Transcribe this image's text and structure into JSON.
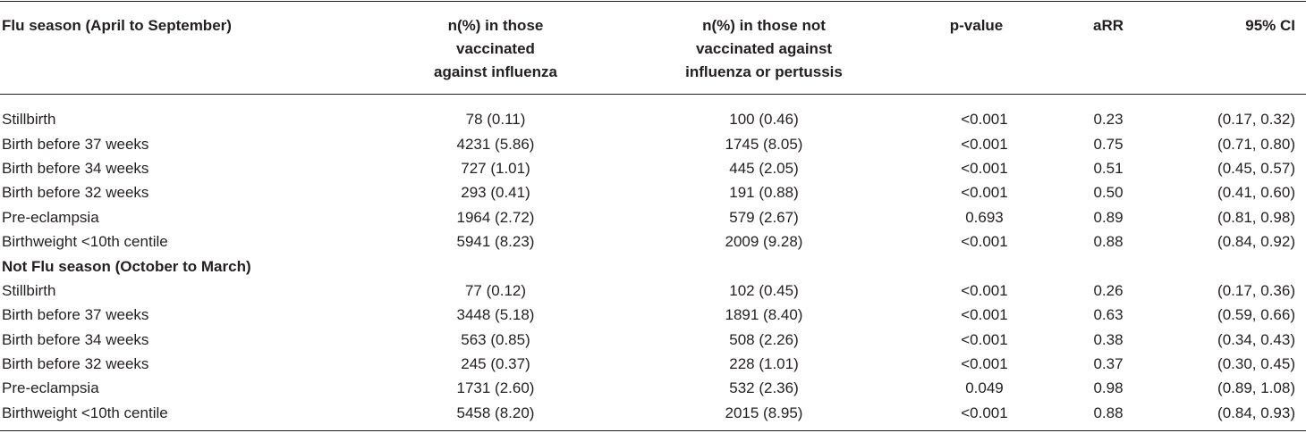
{
  "header": {
    "col0": "Flu season (April to September)",
    "col1_lines": [
      "n(%) in those",
      "vaccinated",
      "against influenza"
    ],
    "col2_lines": [
      "n(%) in those not",
      "vaccinated against",
      "influenza or pertussis"
    ],
    "col3": "p-value",
    "col4": "aRR",
    "col5": "95% CI"
  },
  "flu_rows": [
    {
      "outcome": "Stillbirth",
      "vaccinated": "78 (0.11)",
      "not_vaccinated": "100 (0.46)",
      "p_value": "<0.001",
      "arr": "0.23",
      "ci": "(0.17, 0.32)"
    },
    {
      "outcome": "Birth before 37 weeks",
      "vaccinated": "4231 (5.86)",
      "not_vaccinated": "1745 (8.05)",
      "p_value": "<0.001",
      "arr": "0.75",
      "ci": "(0.71, 0.80)"
    },
    {
      "outcome": "Birth before 34 weeks",
      "vaccinated": "727 (1.01)",
      "not_vaccinated": "445 (2.05)",
      "p_value": "<0.001",
      "arr": "0.51",
      "ci": "(0.45, 0.57)"
    },
    {
      "outcome": "Birth before 32 weeks",
      "vaccinated": "293 (0.41)",
      "not_vaccinated": "191 (0.88)",
      "p_value": "<0.001",
      "arr": "0.50",
      "ci": "(0.41, 0.60)"
    },
    {
      "outcome": "Pre-eclampsia",
      "vaccinated": "1964 (2.72)",
      "not_vaccinated": "579 (2.67)",
      "p_value": "0.693",
      "arr": "0.89",
      "ci": "(0.81, 0.98)"
    },
    {
      "outcome": "Birthweight <10th centile",
      "vaccinated": "5941 (8.23)",
      "not_vaccinated": "2009 (9.28)",
      "p_value": "<0.001",
      "arr": "0.88",
      "ci": "(0.84, 0.92)"
    }
  ],
  "section2_title": "Not Flu season (October to March)",
  "not_flu_rows": [
    {
      "outcome": "Stillbirth",
      "vaccinated": "77 (0.12)",
      "not_vaccinated": "102 (0.45)",
      "p_value": "<0.001",
      "arr": "0.26",
      "ci": "(0.17, 0.36)"
    },
    {
      "outcome": "Birth before 37 weeks",
      "vaccinated": "3448 (5.18)",
      "not_vaccinated": "1891 (8.40)",
      "p_value": "<0.001",
      "arr": "0.63",
      "ci": "(0.59, 0.66)"
    },
    {
      "outcome": "Birth before 34 weeks",
      "vaccinated": "563 (0.85)",
      "not_vaccinated": "508 (2.26)",
      "p_value": "<0.001",
      "arr": "0.38",
      "ci": "(0.34, 0.43)"
    },
    {
      "outcome": "Birth before 32 weeks",
      "vaccinated": "245 (0.37)",
      "not_vaccinated": "228 (1.01)",
      "p_value": "<0.001",
      "arr": "0.37",
      "ci": "(0.30, 0.45)"
    },
    {
      "outcome": "Pre-eclampsia",
      "vaccinated": "1731 (2.60)",
      "not_vaccinated": "532 (2.36)",
      "p_value": "0.049",
      "arr": "0.98",
      "ci": "(0.89, 1.08)"
    },
    {
      "outcome": "Birthweight <10th centile",
      "vaccinated": "5458 (8.20)",
      "not_vaccinated": "2015 (8.95)",
      "p_value": "<0.001",
      "arr": "0.88",
      "ci": "(0.84, 0.93)"
    }
  ]
}
